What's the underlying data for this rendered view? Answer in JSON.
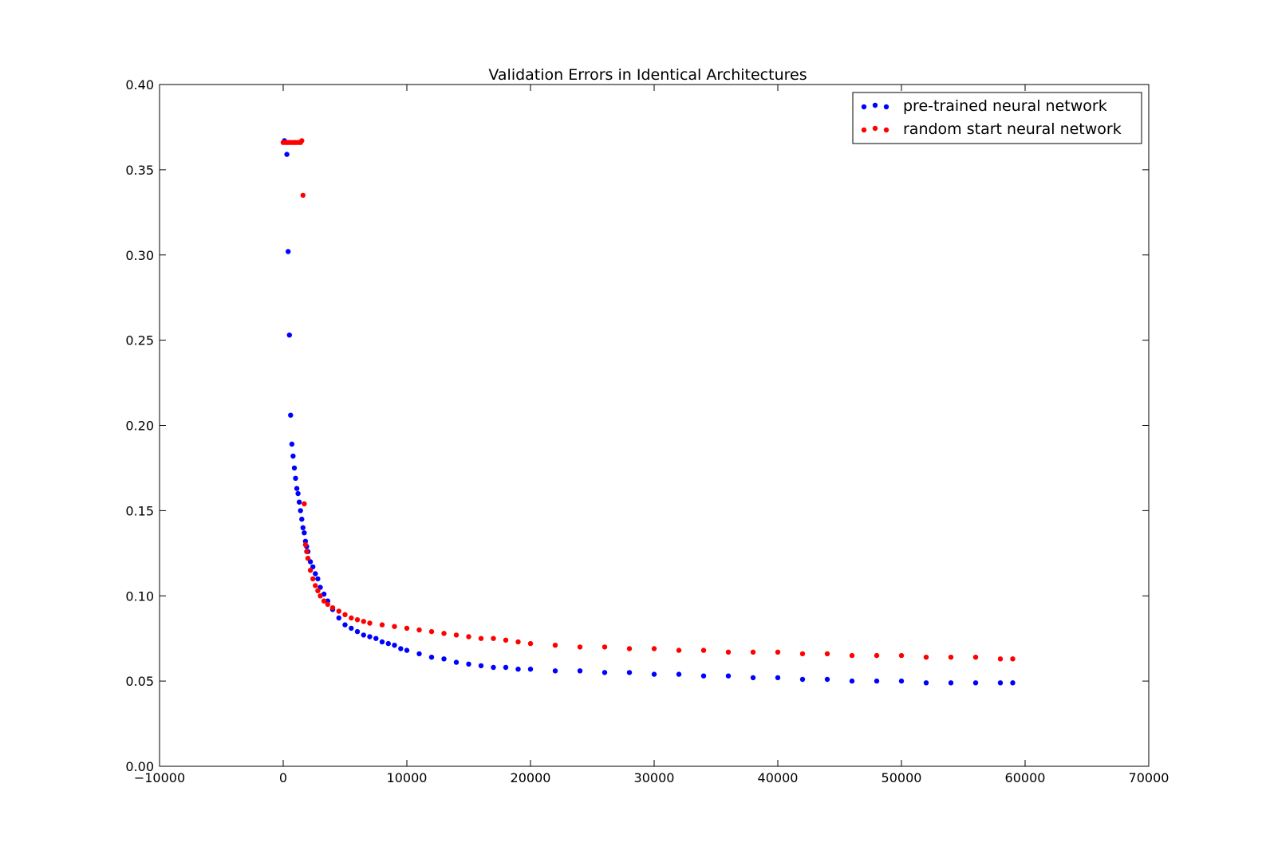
{
  "chart_data": {
    "type": "scatter",
    "title": "Validation Errors in Identical Architectures",
    "xlabel": "",
    "ylabel": "",
    "xlim": [
      -10000,
      70000
    ],
    "ylim": [
      0.0,
      0.4
    ],
    "x_ticks": [
      -10000,
      0,
      10000,
      20000,
      30000,
      40000,
      50000,
      60000,
      70000
    ],
    "x_tick_labels": [
      "−10000",
      "0",
      "10000",
      "20000",
      "30000",
      "40000",
      "50000",
      "60000",
      "70000"
    ],
    "y_ticks": [
      0.0,
      0.05,
      0.1,
      0.15,
      0.2,
      0.25,
      0.3,
      0.35,
      0.4
    ],
    "y_tick_labels": [
      "0.00",
      "0.05",
      "0.10",
      "0.15",
      "0.20",
      "0.25",
      "0.30",
      "0.35",
      "0.40"
    ],
    "grid": false,
    "legend_position": "top-right",
    "series": [
      {
        "name": "pre-trained neural network",
        "color": "#0000ff",
        "x": [
          100,
          300,
          400,
          500,
          600,
          700,
          800,
          900,
          1000,
          1100,
          1200,
          1300,
          1400,
          1500,
          1600,
          1700,
          1800,
          1900,
          2000,
          2200,
          2400,
          2600,
          2800,
          3000,
          3300,
          3600,
          4000,
          4500,
          5000,
          5500,
          6000,
          6500,
          7000,
          7500,
          8000,
          8500,
          9000,
          9500,
          10000,
          11000,
          12000,
          13000,
          14000,
          15000,
          16000,
          17000,
          18000,
          19000,
          20000,
          22000,
          24000,
          26000,
          28000,
          30000,
          32000,
          34000,
          36000,
          38000,
          40000,
          42000,
          44000,
          46000,
          48000,
          50000,
          52000,
          54000,
          56000,
          58000,
          59000
        ],
        "y": [
          0.367,
          0.359,
          0.302,
          0.253,
          0.206,
          0.189,
          0.182,
          0.175,
          0.169,
          0.163,
          0.16,
          0.155,
          0.15,
          0.145,
          0.14,
          0.137,
          0.132,
          0.129,
          0.126,
          0.12,
          0.117,
          0.113,
          0.11,
          0.105,
          0.101,
          0.097,
          0.092,
          0.087,
          0.083,
          0.081,
          0.079,
          0.077,
          0.076,
          0.075,
          0.073,
          0.072,
          0.071,
          0.069,
          0.068,
          0.066,
          0.064,
          0.063,
          0.061,
          0.06,
          0.059,
          0.058,
          0.058,
          0.057,
          0.057,
          0.056,
          0.056,
          0.055,
          0.055,
          0.054,
          0.054,
          0.053,
          0.053,
          0.052,
          0.052,
          0.051,
          0.051,
          0.05,
          0.05,
          0.05,
          0.049,
          0.049,
          0.049,
          0.049,
          0.049
        ]
      },
      {
        "name": "random start neural network",
        "color": "#ff0000",
        "x": [
          0,
          200,
          400,
          600,
          800,
          1000,
          1200,
          1400,
          1500,
          1600,
          1700,
          1800,
          1900,
          2000,
          2200,
          2400,
          2600,
          2800,
          3000,
          3300,
          3600,
          4000,
          4500,
          5000,
          5500,
          6000,
          6500,
          7000,
          8000,
          9000,
          10000,
          11000,
          12000,
          13000,
          14000,
          15000,
          16000,
          17000,
          18000,
          19000,
          20000,
          22000,
          24000,
          26000,
          28000,
          30000,
          32000,
          34000,
          36000,
          38000,
          40000,
          42000,
          44000,
          46000,
          48000,
          50000,
          52000,
          54000,
          56000,
          58000,
          59000
        ],
        "y": [
          0.366,
          0.366,
          0.366,
          0.366,
          0.366,
          0.366,
          0.366,
          0.366,
          0.367,
          0.335,
          0.154,
          0.13,
          0.126,
          0.122,
          0.115,
          0.11,
          0.106,
          0.103,
          0.1,
          0.097,
          0.095,
          0.093,
          0.091,
          0.089,
          0.087,
          0.086,
          0.085,
          0.084,
          0.083,
          0.082,
          0.081,
          0.08,
          0.079,
          0.078,
          0.077,
          0.076,
          0.075,
          0.075,
          0.074,
          0.073,
          0.072,
          0.071,
          0.07,
          0.07,
          0.069,
          0.069,
          0.068,
          0.068,
          0.067,
          0.067,
          0.067,
          0.066,
          0.066,
          0.065,
          0.065,
          0.065,
          0.064,
          0.064,
          0.064,
          0.063,
          0.063
        ]
      }
    ]
  }
}
